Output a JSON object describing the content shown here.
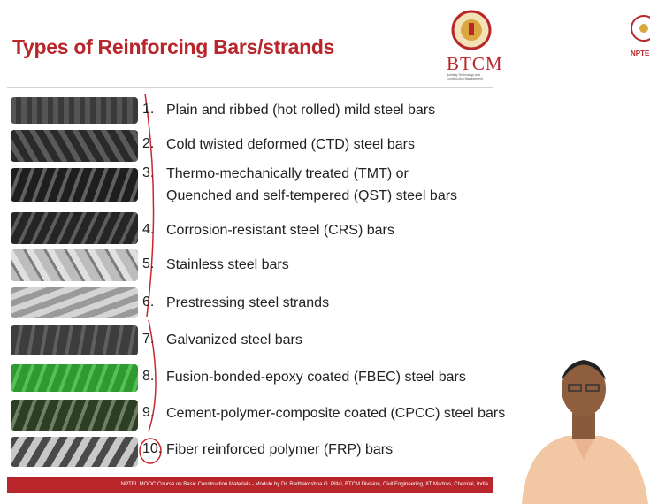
{
  "header": {
    "title": "Types of Reinforcing Bars/strands",
    "logo": "BTCM",
    "logo_subtitle": "Building Technology and Construction Management",
    "logo2": "NPTEL"
  },
  "items": [
    {
      "number": "1.",
      "lines": [
        "Plain and ribbed (hot rolled) mild steel bars"
      ]
    },
    {
      "number": "2.",
      "lines": [
        "Cold twisted deformed (CTD) steel bars"
      ]
    },
    {
      "number": "3.",
      "lines": [
        "Thermo-mechanically treated (TMT) or",
        "Quenched and self-tempered (QST) steel bars"
      ]
    },
    {
      "number": "4.",
      "lines": [
        "Corrosion-resistant steel (CRS) bars"
      ]
    },
    {
      "number": "5.",
      "lines": [
        "Stainless steel bars"
      ]
    },
    {
      "number": "6.",
      "lines": [
        "Prestressing steel strands"
      ]
    },
    {
      "number": "7.",
      "lines": [
        "Galvanized steel bars"
      ]
    },
    {
      "number": "8.",
      "lines": [
        "Fusion-bonded-epoxy coated (FBEC) steel bars"
      ]
    },
    {
      "number": "9.",
      "lines": [
        "Cement-polymer-composite coated (CPCC) steel bars"
      ]
    },
    {
      "number": "10.",
      "lines": [
        "Fiber reinforced polymer (FRP) bars"
      ]
    }
  ],
  "footer": "NPTEL MOOC Course on Basic Construction Materials - Module by Dr. Radhakrishna G. Pillai, BTCM Division, Civil Engineering, IIT Madras, Chennai, India"
}
